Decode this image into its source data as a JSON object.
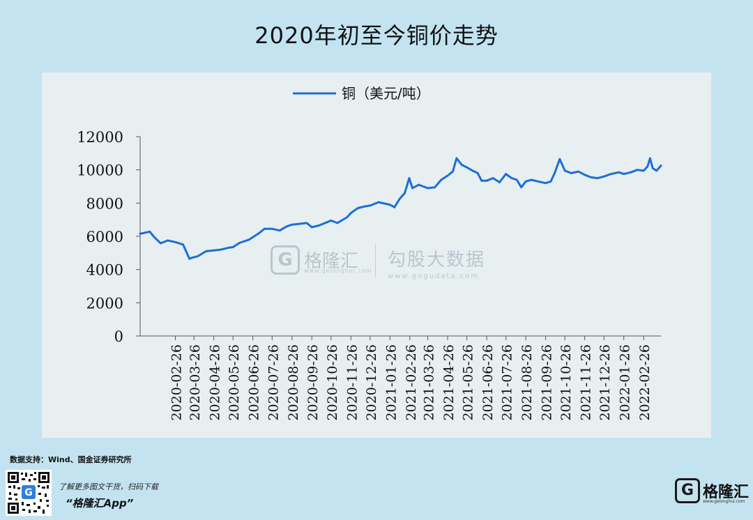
{
  "header": {
    "title": "2020年初至今铜价走势"
  },
  "watermark": {
    "left_mark": "G",
    "left_name": "格隆汇",
    "left_url": "www.gelonghui.com",
    "right_name": "勾股大数据",
    "right_url": "www.gogudata.com"
  },
  "footer": {
    "source": "数据支持：Wind、国金证券研究所",
    "promo_line1": "了解更多图文干货，扫码下载",
    "promo_line2": "“格隆汇App”",
    "brand_mark": "G",
    "brand_name": "格隆汇",
    "brand_url": "www.gelonghui.com",
    "qr_icon": "qr-code-icon"
  },
  "chart_data": {
    "type": "line",
    "title": "2020年初至今铜价走势",
    "legend_position": "top-center",
    "grid": false,
    "ylim": [
      0,
      12000
    ],
    "yticks": [
      0,
      2000,
      4000,
      6000,
      8000,
      10000,
      12000
    ],
    "xticks": [
      "2020-02-26",
      "2020-03-26",
      "2020-04-26",
      "2020-05-26",
      "2020-06-26",
      "2020-07-26",
      "2020-08-26",
      "2020-09-26",
      "2020-10-26",
      "2020-11-26",
      "2020-12-26",
      "2021-01-26",
      "2021-02-26",
      "2021-03-26",
      "2021-04-26",
      "2021-05-26",
      "2021-06-26",
      "2021-07-26",
      "2021-08-26",
      "2021-09-26",
      "2021-10-26",
      "2021-11-26",
      "2021-12-26",
      "2022-01-26",
      "2022-02-26"
    ],
    "xlim": [
      "2020-01-02",
      "2022-03-25"
    ],
    "color": "#1a6fd6",
    "series": [
      {
        "name": "铜（美元/吨）",
        "points": [
          [
            "2020-01-02",
            6150
          ],
          [
            "2020-01-17",
            6280
          ],
          [
            "2020-01-24",
            5950
          ],
          [
            "2020-02-03",
            5580
          ],
          [
            "2020-02-14",
            5750
          ],
          [
            "2020-02-26",
            5650
          ],
          [
            "2020-03-09",
            5500
          ],
          [
            "2020-03-19",
            4650
          ],
          [
            "2020-03-24",
            4720
          ],
          [
            "2020-04-01",
            4800
          ],
          [
            "2020-04-14",
            5100
          ],
          [
            "2020-04-26",
            5150
          ],
          [
            "2020-05-07",
            5200
          ],
          [
            "2020-05-20",
            5320
          ],
          [
            "2020-05-26",
            5350
          ],
          [
            "2020-06-05",
            5600
          ],
          [
            "2020-06-20",
            5800
          ],
          [
            "2020-06-26",
            5950
          ],
          [
            "2020-07-06",
            6200
          ],
          [
            "2020-07-14",
            6450
          ],
          [
            "2020-07-26",
            6450
          ],
          [
            "2020-08-07",
            6350
          ],
          [
            "2020-08-18",
            6600
          ],
          [
            "2020-08-26",
            6700
          ],
          [
            "2020-09-07",
            6750
          ],
          [
            "2020-09-18",
            6800
          ],
          [
            "2020-09-26",
            6550
          ],
          [
            "2020-10-07",
            6650
          ],
          [
            "2020-10-20",
            6850
          ],
          [
            "2020-10-26",
            6950
          ],
          [
            "2020-11-05",
            6800
          ],
          [
            "2020-11-20",
            7150
          ],
          [
            "2020-11-26",
            7400
          ],
          [
            "2020-12-07",
            7700
          ],
          [
            "2020-12-18",
            7800
          ],
          [
            "2020-12-26",
            7850
          ],
          [
            "2021-01-08",
            8050
          ],
          [
            "2021-01-20",
            7950
          ],
          [
            "2021-01-26",
            7900
          ],
          [
            "2021-02-02",
            7750
          ],
          [
            "2021-02-10",
            8250
          ],
          [
            "2021-02-18",
            8600
          ],
          [
            "2021-02-25",
            9500
          ],
          [
            "2021-03-02",
            8900
          ],
          [
            "2021-03-12",
            9100
          ],
          [
            "2021-03-26",
            8900
          ],
          [
            "2021-04-06",
            8950
          ],
          [
            "2021-04-16",
            9400
          ],
          [
            "2021-04-26",
            9650
          ],
          [
            "2021-05-04",
            9900
          ],
          [
            "2021-05-10",
            10700
          ],
          [
            "2021-05-18",
            10300
          ],
          [
            "2021-05-26",
            10150
          ],
          [
            "2021-06-04",
            9950
          ],
          [
            "2021-06-12",
            9800
          ],
          [
            "2021-06-18",
            9350
          ],
          [
            "2021-06-26",
            9350
          ],
          [
            "2021-07-06",
            9500
          ],
          [
            "2021-07-16",
            9250
          ],
          [
            "2021-07-26",
            9750
          ],
          [
            "2021-08-04",
            9500
          ],
          [
            "2021-08-12",
            9400
          ],
          [
            "2021-08-19",
            8950
          ],
          [
            "2021-08-26",
            9300
          ],
          [
            "2021-09-04",
            9400
          ],
          [
            "2021-09-14",
            9300
          ],
          [
            "2021-09-26",
            9200
          ],
          [
            "2021-10-04",
            9300
          ],
          [
            "2021-10-10",
            9800
          ],
          [
            "2021-10-18",
            10650
          ],
          [
            "2021-10-26",
            9950
          ],
          [
            "2021-11-05",
            9800
          ],
          [
            "2021-11-16",
            9900
          ],
          [
            "2021-11-26",
            9700
          ],
          [
            "2021-12-06",
            9550
          ],
          [
            "2021-12-16",
            9500
          ],
          [
            "2021-12-26",
            9600
          ],
          [
            "2022-01-06",
            9750
          ],
          [
            "2022-01-18",
            9850
          ],
          [
            "2022-01-26",
            9750
          ],
          [
            "2022-02-06",
            9850
          ],
          [
            "2022-02-16",
            10000
          ],
          [
            "2022-02-26",
            9950
          ],
          [
            "2022-03-04",
            10200
          ],
          [
            "2022-03-08",
            10700
          ],
          [
            "2022-03-12",
            10100
          ],
          [
            "2022-03-18",
            9950
          ],
          [
            "2022-03-25",
            10250
          ]
        ]
      }
    ]
  }
}
